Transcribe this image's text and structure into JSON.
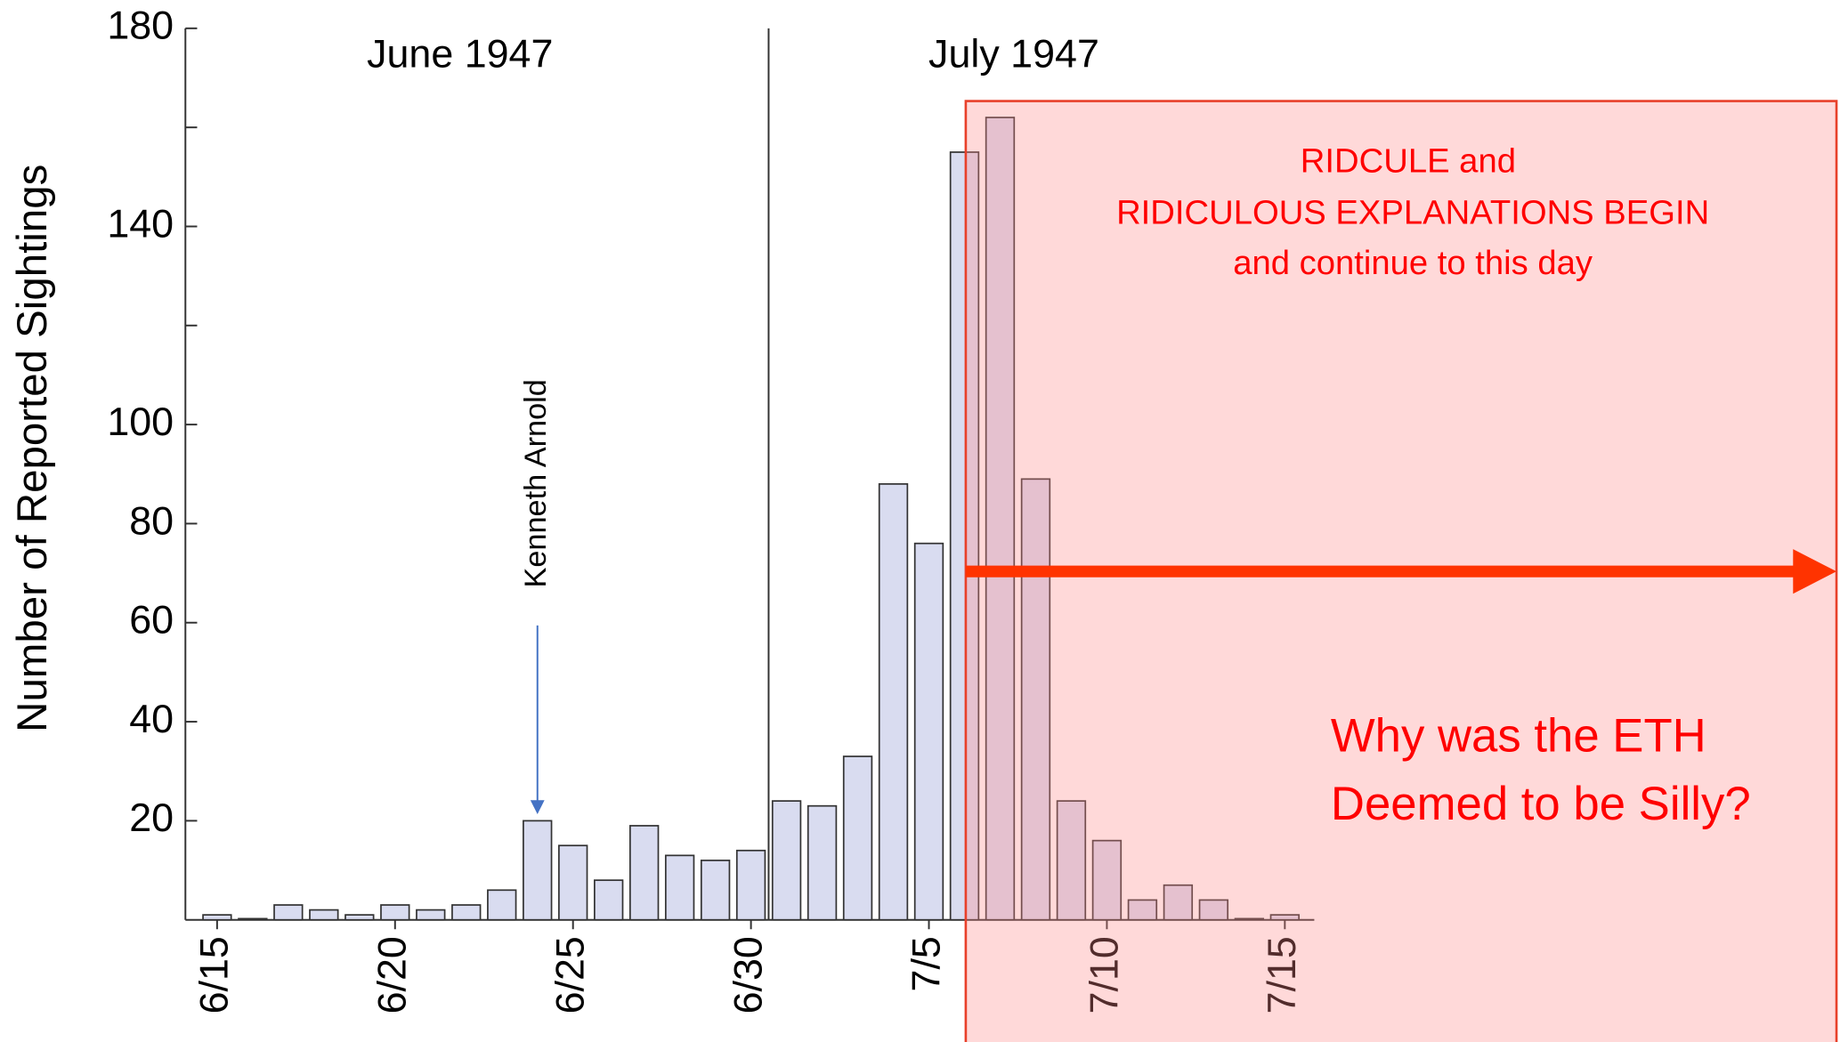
{
  "chart_data": {
    "type": "bar",
    "ylabel": "Number of Reported Sightings",
    "categories": [
      "6/15",
      null,
      null,
      null,
      null,
      "6/20",
      null,
      null,
      null,
      null,
      "6/25",
      null,
      null,
      null,
      null,
      "6/30",
      null,
      null,
      null,
      null,
      "7/5",
      null,
      null,
      null,
      null,
      "7/10",
      null,
      null,
      null,
      null,
      "7/15"
    ],
    "values": [
      1,
      0,
      3,
      2,
      1,
      3,
      2,
      3,
      6,
      20,
      15,
      8,
      19,
      13,
      12,
      14,
      24,
      23,
      33,
      88,
      76,
      155,
      162,
      89,
      24,
      16,
      4,
      7,
      4,
      0,
      1
    ],
    "color": "#d9dcf0",
    "ylim": [
      0,
      180
    ],
    "yticks": [
      20,
      40,
      60,
      80,
      100,
      140,
      180
    ],
    "yminorticks": [
      120,
      160
    ],
    "annotations": {
      "june": "June 1947",
      "july": "July 1947",
      "arnold": "Kenneth Arnold",
      "ridicule": [
        "RIDCULE and",
        "RIDICULOUS EXPLANATIONS BEGIN",
        "and continue to this day"
      ],
      "question": [
        "Why was the ETH",
        "Deemed to be Silly?"
      ]
    }
  }
}
